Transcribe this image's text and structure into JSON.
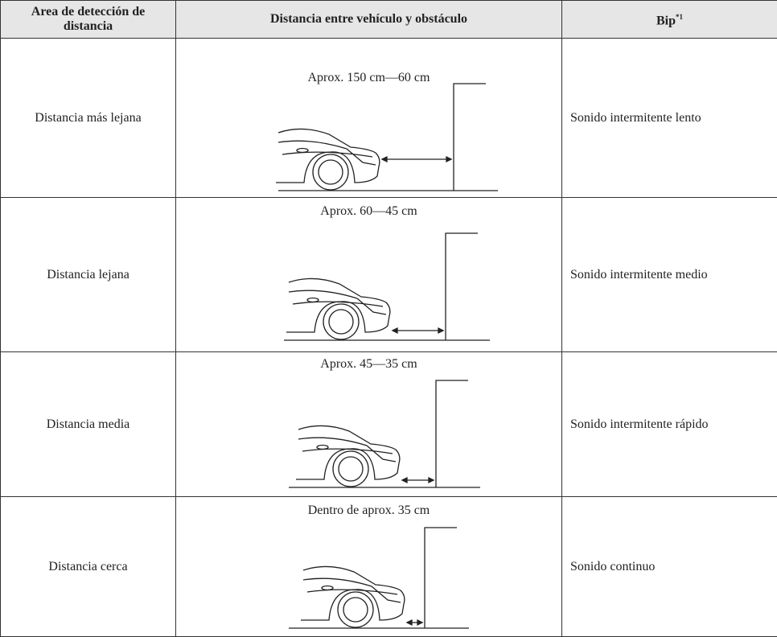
{
  "table": {
    "header": [
      "Area de detección de distancia",
      "Distancia entre vehículo y obstáculo",
      {
        "text": "Bip",
        "note": "*1"
      }
    ],
    "rows": [
      [
        "Distancia más lejana",
        "Aprox. 150 cm—60 cm",
        "Sonido intermitente lento"
      ],
      [
        "Distancia lejana",
        "Aprox. 60—45 cm",
        "Sonido intermitente medio"
      ],
      [
        "Distancia media",
        "Aprox. 45—35 cm",
        "Sonido intermitente rápido"
      ],
      [
        "Distancia cerca",
        "Dentro de aprox. 35 cm",
        "Sonido continuo"
      ]
    ]
  }
}
